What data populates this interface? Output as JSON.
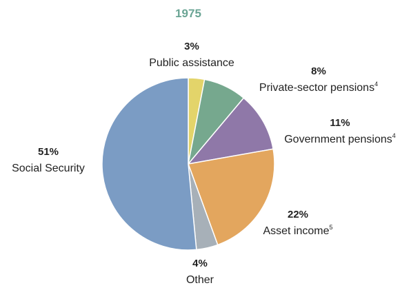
{
  "chart_data": {
    "type": "pie",
    "title": "1975",
    "title_color": "#6aa494",
    "start": "top, clockwise",
    "slices": [
      {
        "label": "Public assistance",
        "value": 3,
        "pct_text": "3%",
        "footnote": "",
        "color": "#e3d46a"
      },
      {
        "label": "Private-sector pensions",
        "value": 8,
        "pct_text": "8%",
        "footnote": "4",
        "color": "#76a88e"
      },
      {
        "label": "Government pensions",
        "value": 11,
        "pct_text": "11%",
        "footnote": "4",
        "color": "#8f78a8"
      },
      {
        "label": "Asset income",
        "value": 22,
        "pct_text": "22%",
        "footnote": "5",
        "color": "#e3a65e"
      },
      {
        "label": "Other",
        "value": 4,
        "pct_text": "4%",
        "footnote": "",
        "color": "#a7b0b8"
      },
      {
        "label": "Social Security",
        "value": 51,
        "pct_text": "51%",
        "footnote": "",
        "color": "#7b9cc4"
      }
    ]
  }
}
